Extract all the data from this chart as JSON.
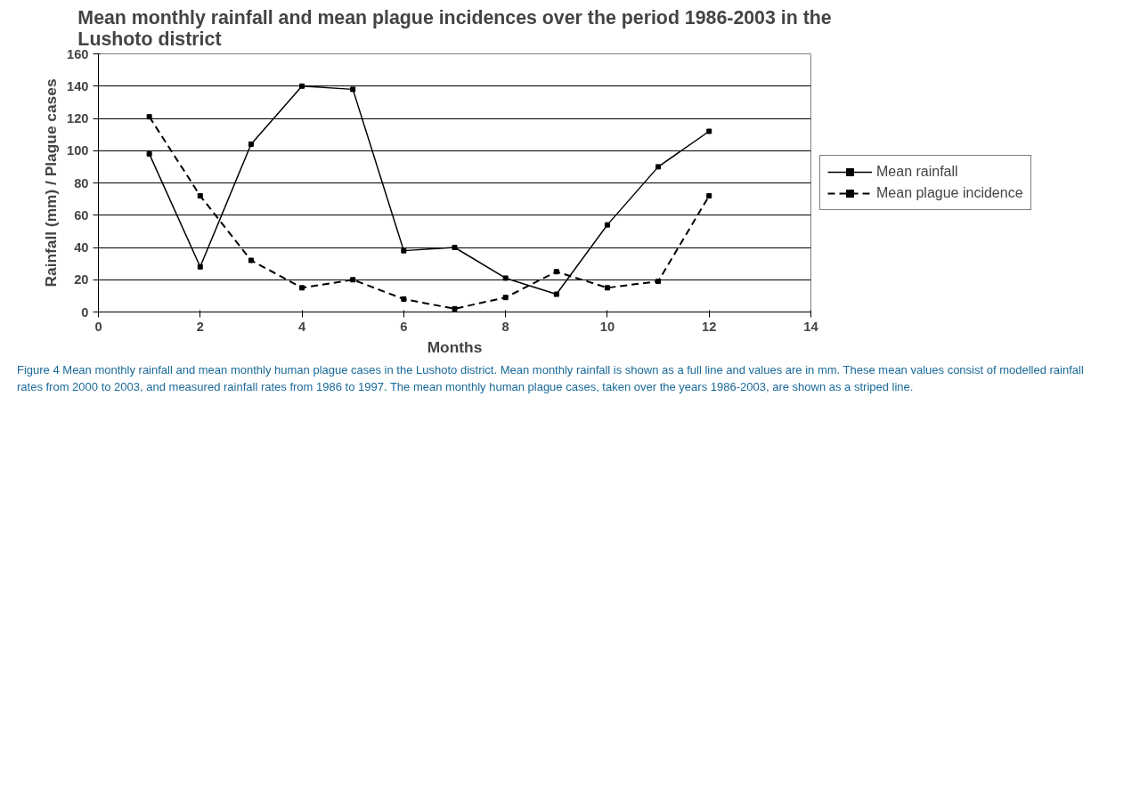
{
  "chart_data": {
    "type": "line",
    "title": "Mean monthly rainfall and mean plague incidences over the period 1986-2003 in the Lushoto district",
    "xlabel": "Months",
    "ylabel": "Rainfall (mm) / Plague cases",
    "x": [
      1,
      2,
      3,
      4,
      5,
      6,
      7,
      8,
      9,
      10,
      11,
      12
    ],
    "series": [
      {
        "name": "Mean rainfall",
        "color": "#000000",
        "line_style": "solid",
        "values": [
          98,
          28,
          104,
          140,
          138,
          38,
          40,
          21,
          11,
          54,
          90,
          112
        ]
      },
      {
        "name": "Mean plague incidence",
        "color": "#000000",
        "line_style": "dashed",
        "values": [
          121,
          72,
          32,
          15,
          20,
          8,
          2,
          9,
          25,
          15,
          19,
          72
        ]
      }
    ],
    "xlim": [
      0,
      14
    ],
    "xticks": [
      0,
      2,
      4,
      6,
      8,
      10,
      12,
      14
    ],
    "ylim": [
      0,
      160
    ],
    "yticks": [
      0,
      20,
      40,
      60,
      80,
      100,
      120,
      140,
      160
    ],
    "grid": "y",
    "legend": "right",
    "marker": "square",
    "annotations": [
      "Figure 4 Mean monthly rainfall and mean monthly human plague cases in the Lushoto district. Mean monthly rainfall is shown as a full line and values are in mm. These mean values consist of modelled rainfall rates from 2000 to 2003, and measured rainfall rates from 1986 to 1997. The mean monthly human plague cases, taken over the years 1986-2003, are shown as a striped line."
    ]
  }
}
